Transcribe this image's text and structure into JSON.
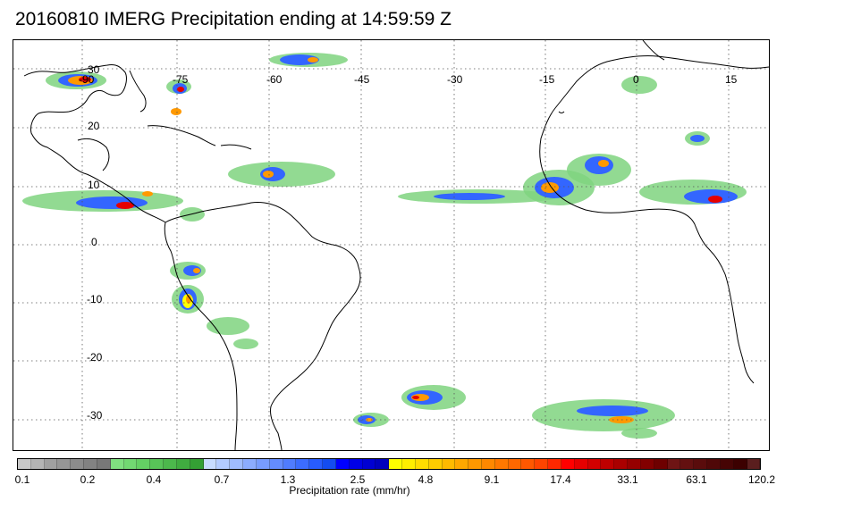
{
  "title": "20160810 IMERG Precipitation ending at 14:59:59 Z",
  "map": {
    "lon_labels": [
      "-90",
      "-75",
      "-60",
      "-45",
      "-30",
      "-15",
      "0",
      "15"
    ],
    "lat_labels": [
      "30",
      "20",
      "10",
      "0",
      "-10",
      "-20",
      "-30"
    ],
    "coastline_color": "#000000",
    "gridline_style": "dotted",
    "precip_colors": {
      "light": "#7fd47f",
      "blue": "#3366ff",
      "dark_blue": "#1010c8",
      "yellow": "#ffff00",
      "orange": "#ff9900",
      "red": "#e60000"
    }
  },
  "colorbar": {
    "title": "Precipitation rate (mm/hr)",
    "tick_labels": [
      "0.1",
      "0.2",
      "0.4",
      "0.7",
      "1.3",
      "2.5",
      "4.8",
      "9.1",
      "17.4",
      "33.1",
      "63.1",
      "120.2"
    ],
    "colors": [
      "#c8c8c8",
      "#b4b4b4",
      "#a0a0a0",
      "#969696",
      "#8c8c8c",
      "#828282",
      "#787878",
      "#80e080",
      "#72d872",
      "#64d064",
      "#58c458",
      "#4cb84c",
      "#40ac40",
      "#34a034",
      "#c8dcff",
      "#b4ccff",
      "#a0bcff",
      "#8cacff",
      "#789cff",
      "#648cff",
      "#507cff",
      "#3c6cff",
      "#285cff",
      "#144cf0",
      "#0000ff",
      "#0000e6",
      "#0000d2",
      "#0000be",
      "#ffff00",
      "#ffee00",
      "#ffdc00",
      "#ffcc00",
      "#ffba00",
      "#ffa800",
      "#ff9800",
      "#ff8800",
      "#ff7800",
      "#ff6800",
      "#ff5800",
      "#ff4400",
      "#ff2800",
      "#ff0000",
      "#e60000",
      "#d20000",
      "#be0000",
      "#aa0000",
      "#960000",
      "#820000",
      "#6e0000",
      "#6e1414",
      "#641010",
      "#5a0c0c",
      "#500808",
      "#460404",
      "#3c0000",
      "#5a1e1e"
    ]
  }
}
